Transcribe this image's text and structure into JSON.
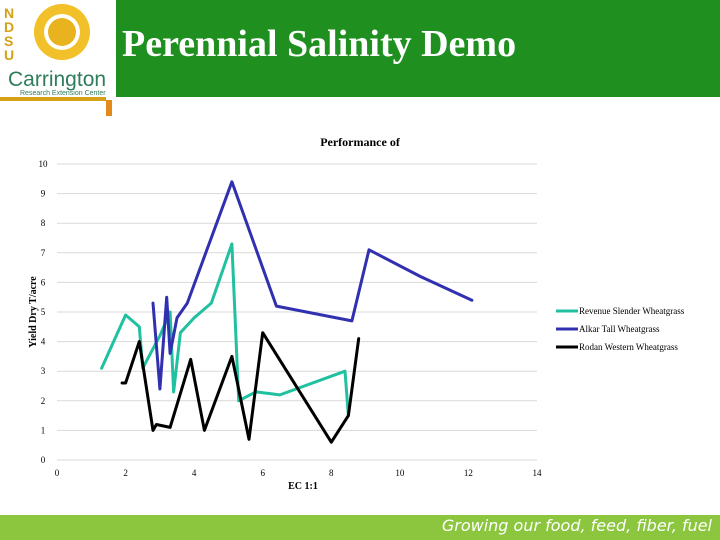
{
  "slide": {
    "title": "Perennial Salinity Demo",
    "footer": "Growing our food, feed, fiber, fuel"
  },
  "logo": {
    "letters": [
      "N",
      "D",
      "S",
      "U"
    ],
    "name": "Carrington",
    "subtitle": "Research Extension Center"
  },
  "colors": {
    "header": "#1f8f1f",
    "footer": "#8bc63e",
    "accent": "#d4a017"
  },
  "chart_data": {
    "type": "line",
    "title": "Performance of",
    "xlabel": "EC 1:1",
    "ylabel": "Yield Dry T/acre",
    "xlim": [
      0,
      14
    ],
    "ylim": [
      0,
      10
    ],
    "xticks": [
      0,
      2,
      4,
      6,
      8,
      10,
      12,
      14
    ],
    "yticks": [
      0,
      1,
      2,
      3,
      4,
      5,
      6,
      7,
      8,
      9,
      10
    ],
    "grid": "horizontal",
    "legend": "right",
    "series": [
      {
        "name": "Revenue Slender Wheatgrass",
        "color": "#20c0a0",
        "points": [
          [
            1.3,
            3.1
          ],
          [
            2.0,
            4.9
          ],
          [
            2.4,
            4.5
          ],
          [
            2.5,
            3.1
          ],
          [
            3.0,
            4.2
          ],
          [
            3.3,
            5.0
          ],
          [
            3.4,
            2.3
          ],
          [
            3.6,
            4.3
          ],
          [
            4.0,
            4.8
          ],
          [
            4.5,
            5.3
          ],
          [
            5.1,
            7.3
          ],
          [
            5.3,
            2.0
          ],
          [
            5.8,
            2.3
          ],
          [
            6.5,
            2.2
          ],
          [
            8.4,
            3.0
          ],
          [
            8.5,
            1.5
          ]
        ]
      },
      {
        "name": "Alkar Tall Wheatgrass",
        "color": "#3030b0",
        "points": [
          [
            2.8,
            5.3
          ],
          [
            3.0,
            2.4
          ],
          [
            3.2,
            5.5
          ],
          [
            3.3,
            3.6
          ],
          [
            3.5,
            4.8
          ],
          [
            3.8,
            5.3
          ],
          [
            5.1,
            9.4
          ],
          [
            6.4,
            5.2
          ],
          [
            8.6,
            4.7
          ],
          [
            9.1,
            7.1
          ],
          [
            10.6,
            6.2
          ],
          [
            12.1,
            5.4
          ]
        ]
      },
      {
        "name": "Rodan Western Wheatgrass",
        "color": "#000000",
        "points": [
          [
            1.9,
            2.6
          ],
          [
            2.0,
            2.6
          ],
          [
            2.4,
            4.0
          ],
          [
            2.8,
            1.0
          ],
          [
            2.9,
            1.2
          ],
          [
            3.3,
            1.1
          ],
          [
            3.9,
            3.4
          ],
          [
            4.3,
            1.0
          ],
          [
            5.1,
            3.5
          ],
          [
            5.6,
            0.7
          ],
          [
            6.0,
            4.3
          ],
          [
            8.0,
            0.6
          ],
          [
            8.5,
            1.5
          ],
          [
            8.8,
            4.1
          ]
        ]
      }
    ]
  }
}
